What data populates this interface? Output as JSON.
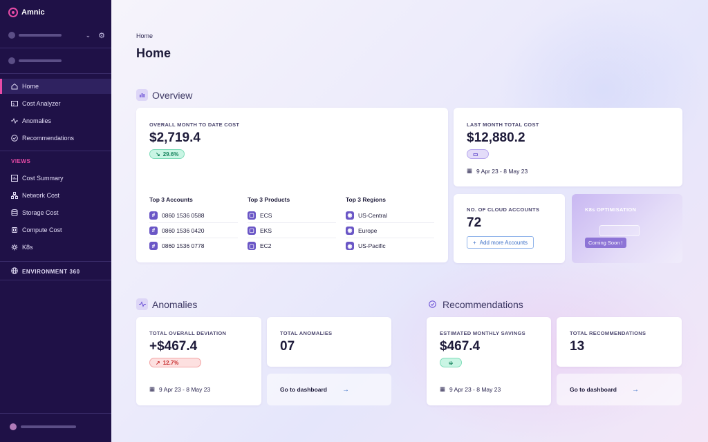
{
  "sidebar": {
    "brand": "Amnic",
    "nav": [
      {
        "label": "Home",
        "icon": "home-icon",
        "active": true
      },
      {
        "label": "Cost Analyzer",
        "icon": "cost-analyzer-icon"
      },
      {
        "label": "Anomalies",
        "icon": "pulse-icon"
      },
      {
        "label": "Recommendations",
        "icon": "check-circle-icon"
      }
    ],
    "views_label": "VIEWS",
    "views": [
      {
        "label": "Cost Summary",
        "icon": "summary-icon"
      },
      {
        "label": "Network Cost",
        "icon": "network-icon"
      },
      {
        "label": "Storage Cost",
        "icon": "database-icon"
      },
      {
        "label": "Compute Cost",
        "icon": "chip-icon"
      },
      {
        "label": "K8s",
        "icon": "k8s-icon"
      }
    ],
    "environment": "ENVIRONMENT 360"
  },
  "header": {
    "breadcrumb": "Home",
    "title": "Home"
  },
  "overview": {
    "heading": "Overview",
    "mtd": {
      "label": "OVERALL MONTH TO DATE COST",
      "value": "$2,719.4",
      "change": "29.6%"
    },
    "top_accounts": {
      "title": "Top 3 Accounts",
      "items": [
        "0860 1536 0588",
        "0860 1536 0420",
        "0860 1536 0778"
      ]
    },
    "top_products": {
      "title": "Top 3 Products",
      "items": [
        "ECS",
        "EKS",
        "EC2"
      ]
    },
    "top_regions": {
      "title": "Top 3 Regions",
      "items": [
        "US-Central",
        "Europe",
        "US-Pacific"
      ]
    },
    "last_month": {
      "label": "LAST MONTH TOTAL COST",
      "value": "$12,880.2",
      "date": "9 Apr 23 - 8 May 23"
    },
    "cloud_accounts": {
      "label": "NO. OF CLOUD ACCOUNTS",
      "value": "72",
      "button": "Add more Accounts"
    },
    "k8s": {
      "label": "K8s OPTIMISATION",
      "badge": "Coming Soon !"
    }
  },
  "anomalies": {
    "heading": "Anomalies",
    "deviation": {
      "label": "TOTAL OVERALL DEVIATION",
      "value": "+$467.4",
      "change": "12.7%",
      "date": "9 Apr 23 - 8 May 23"
    },
    "total": {
      "label": "TOTAL ANOMALIES",
      "value": "07"
    },
    "go": "Go to dashboard"
  },
  "recommendations": {
    "heading": "Recommendations",
    "savings": {
      "label": "ESTIMATED MONTHLY SAVINGS",
      "value": "$467.4",
      "date": "9 Apr 23 - 8 May 23"
    },
    "total": {
      "label": "TOTAL RECOMMENDATIONS",
      "value": "13"
    },
    "go": "Go to dashboard"
  },
  "colors": {
    "sidebar_bg": "#1f1147",
    "accent": "#e94ba7",
    "positive": "#13805a",
    "negative": "#c62b2b"
  }
}
